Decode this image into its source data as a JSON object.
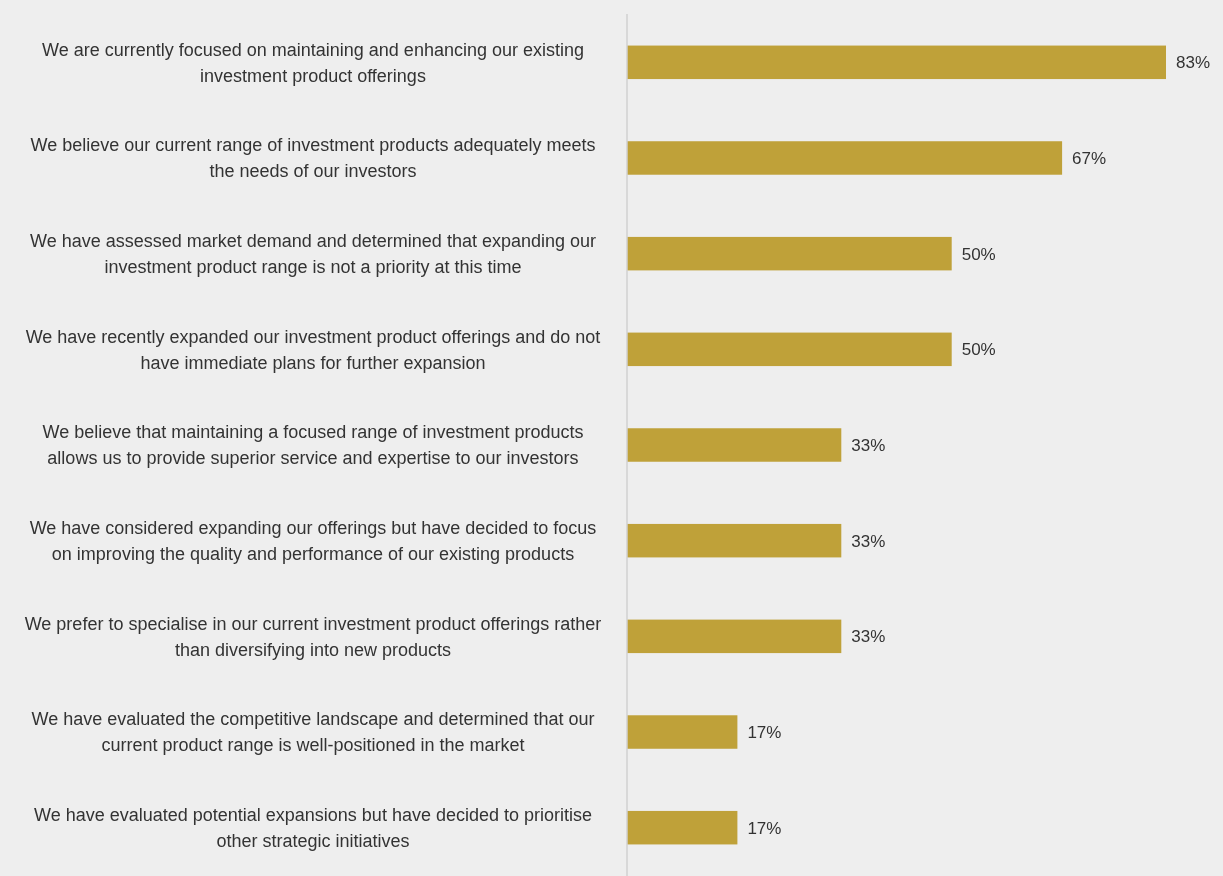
{
  "chart_data": {
    "type": "bar",
    "orientation": "horizontal",
    "categories": [
      "We are currently focused on maintaining and enhancing our existing investment product offerings",
      "We believe our current range of investment products adequately meets the needs of our investors",
      "We have assessed market demand and determined that expanding our investment product range is not a priority at this time",
      "We have recently expanded our investment product offerings and do not have immediate plans for further expansion",
      "We believe that maintaining a focused range of investment products allows us to provide superior service and expertise to our investors",
      "We have considered expanding our offerings but have decided to focus on improving the quality and performance of our existing products",
      "We prefer to specialise in our current investment product offerings rather than diversifying into new products",
      "We have evaluated the competitive landscape and determined that our current product range is well-positioned in the market",
      "We have evaluated potential expansions but have decided to prioritise other strategic initiatives"
    ],
    "values": [
      83,
      67,
      50,
      50,
      33,
      33,
      33,
      17,
      17
    ],
    "value_labels": [
      "83%",
      "67%",
      "50%",
      "50%",
      "33%",
      "33%",
      "33%",
      "17%",
      "17%"
    ],
    "color": "#bfa139"
  }
}
